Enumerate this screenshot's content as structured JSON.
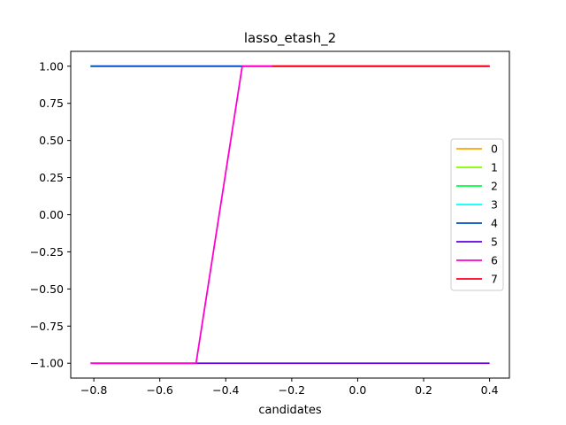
{
  "chart_data": {
    "type": "line",
    "title": "lasso_etash_2",
    "xlabel": "candidates",
    "ylabel": "",
    "xlim": [
      -0.87,
      0.46
    ],
    "ylim": [
      -1.1,
      1.1
    ],
    "xticks": [
      -0.8,
      -0.6,
      -0.4,
      -0.2,
      0.0,
      0.2,
      0.4
    ],
    "xtick_labels": [
      "−0.8",
      "−0.6",
      "−0.4",
      "−0.2",
      "0.0",
      "0.2",
      "0.4"
    ],
    "yticks": [
      -1.0,
      -0.75,
      -0.5,
      -0.25,
      0.0,
      0.25,
      0.5,
      0.75,
      1.0
    ],
    "ytick_labels": [
      "−1.00",
      "−0.75",
      "−0.50",
      "−0.25",
      "0.00",
      "0.25",
      "0.50",
      "0.75",
      "1.00"
    ],
    "legend_position": "center-right",
    "grid": false,
    "series": [
      {
        "name": "0",
        "color": "#ffa500",
        "x": [
          -0.81,
          0.4
        ],
        "y": [
          1.0,
          1.0
        ]
      },
      {
        "name": "1",
        "color": "#80ff00",
        "x": [
          -0.81,
          0.4
        ],
        "y": [
          1.0,
          1.0
        ]
      },
      {
        "name": "2",
        "color": "#00ff40",
        "x": [
          -0.81,
          0.4
        ],
        "y": [
          1.0,
          1.0
        ]
      },
      {
        "name": "3",
        "color": "#00ffff",
        "x": [
          -0.81,
          0.4
        ],
        "y": [
          1.0,
          1.0
        ]
      },
      {
        "name": "4",
        "color": "#0050c0",
        "x": [
          -0.81,
          0.4
        ],
        "y": [
          1.0,
          1.0
        ]
      },
      {
        "name": "5",
        "color": "#6000e0",
        "x": [
          -0.81,
          0.4
        ],
        "y": [
          -1.0,
          -1.0
        ]
      },
      {
        "name": "6",
        "color": "#ff00d0",
        "x": [
          -0.81,
          -0.49,
          -0.35,
          0.4
        ],
        "y": [
          -1.0,
          -1.0,
          1.0,
          1.0
        ]
      },
      {
        "name": "7",
        "color": "#ff0020",
        "x": [
          -0.26,
          0.4
        ],
        "y": [
          1.0,
          1.0
        ]
      }
    ]
  }
}
